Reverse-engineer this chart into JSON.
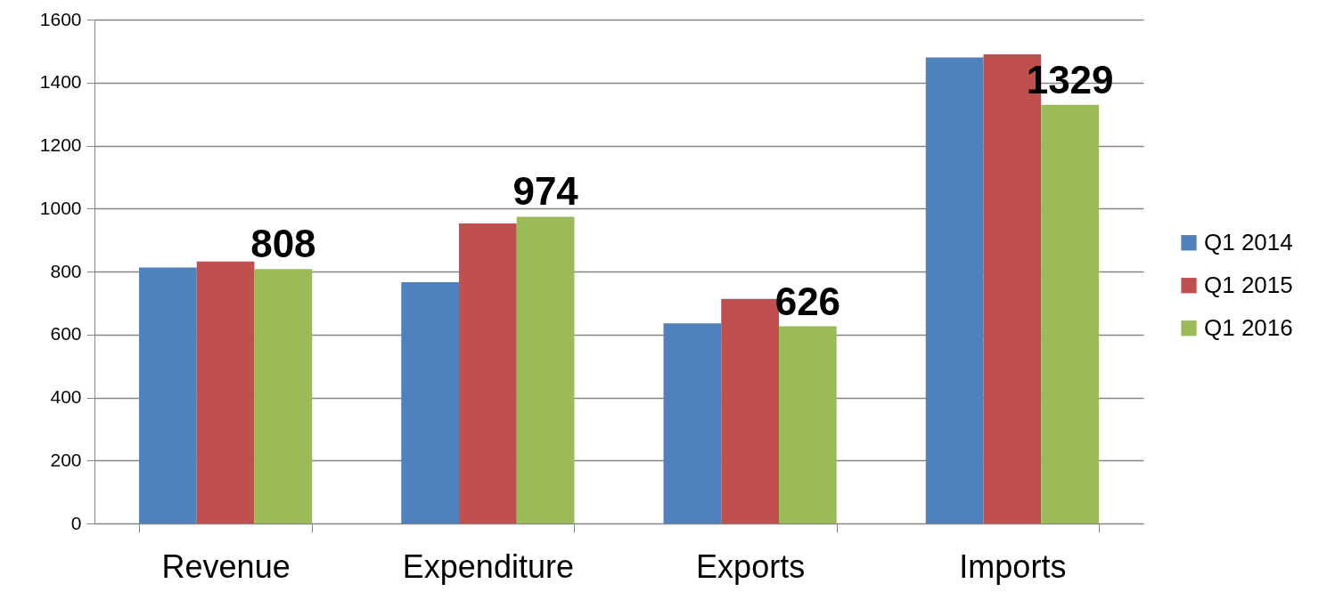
{
  "chart_data": {
    "type": "bar",
    "categories": [
      "Revenue",
      "Expenditure",
      "Exports",
      "Imports"
    ],
    "series": [
      {
        "name": "Q1 2014",
        "color": "#4f81bd",
        "values": [
          813,
          766,
          635,
          1480
        ]
      },
      {
        "name": "Q1 2015",
        "color": "#c0504d",
        "values": [
          832,
          953,
          713,
          1490
        ]
      },
      {
        "name": "Q1 2016",
        "color": "#9bbb59",
        "values": [
          808,
          974,
          626,
          1329
        ],
        "value_labels": [
          "808",
          "974",
          "626",
          "1329"
        ]
      }
    ],
    "ylim": [
      0,
      1600
    ],
    "yticks": [
      0,
      200,
      400,
      600,
      800,
      1000,
      1200,
      1400,
      1600
    ],
    "grid": "y",
    "legend": "right"
  }
}
